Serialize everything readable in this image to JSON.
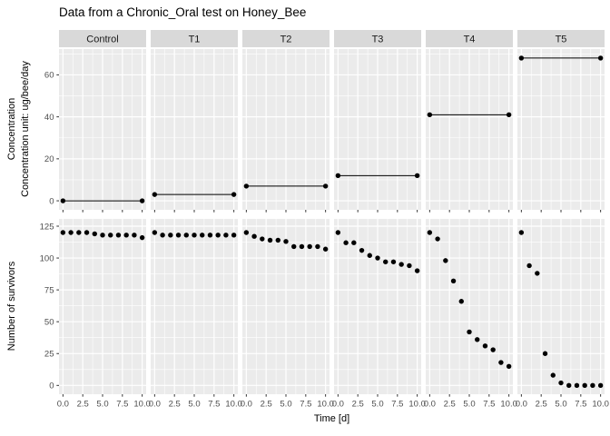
{
  "title": "Data from a Chronic_Oral test on Honey_Bee",
  "chart_data": {
    "type": "scatter",
    "title": "Data from a Chronic_Oral test on Honey_Bee",
    "xlabel": "Time [d]",
    "facets": [
      "Control",
      "T1",
      "T2",
      "T3",
      "T4",
      "T5"
    ],
    "x_days": [
      0,
      1,
      2,
      3,
      4,
      5,
      6,
      7,
      8,
      9,
      10
    ],
    "xlim": [
      -0.5,
      10.5
    ],
    "x_ticks": [
      0,
      2.5,
      5,
      7.5,
      10
    ],
    "x_tick_labels": [
      "0.0",
      "2.5",
      "5.0",
      "7.5",
      "10.0"
    ],
    "grid": "on",
    "legend": "none",
    "rows": [
      {
        "name": "concentration",
        "label_line1": "Concentration",
        "label_line2": "Concentration unit: ug/bee/day",
        "ylim": [
          -4.3,
          72.3
        ],
        "y_ticks": [
          0,
          20,
          40,
          60
        ]
      },
      {
        "name": "survivors",
        "label": "Number of survivors",
        "ylim": [
          -6.9,
          130.7
        ],
        "y_ticks": [
          0,
          25,
          50,
          75,
          100,
          125
        ]
      }
    ],
    "concentration_by_facet": {
      "Control": 0,
      "T1": 3,
      "T2": 7,
      "T3": 12,
      "T4": 41,
      "T5": 68
    },
    "survivors_by_facet": {
      "Control": [
        120,
        120,
        120,
        120,
        119,
        118,
        118,
        118,
        118,
        118,
        116
      ],
      "T1": [
        120,
        118,
        118,
        118,
        118,
        118,
        118,
        118,
        118,
        118,
        118
      ],
      "T2": [
        120,
        117,
        115,
        114,
        114,
        113,
        109,
        109,
        109,
        109,
        107
      ],
      "T3": [
        120,
        112,
        112,
        106,
        102,
        100,
        97,
        97,
        95,
        94,
        90
      ],
      "T4": [
        120,
        115,
        98,
        82,
        66,
        42,
        36,
        31,
        28,
        18,
        15
      ],
      "T5": [
        120,
        94,
        88,
        25,
        8,
        2,
        0,
        0,
        0,
        0,
        0
      ]
    },
    "colors": {
      "panel_bg": "#EBEBEB",
      "strip_bg": "#D9D9D9",
      "grid": "#FFFFFF",
      "point": "#000000",
      "line": "#000000",
      "axis_text": "#4D4D4D",
      "tick_mark": "#333333",
      "strip_text": "#1A1A1A",
      "title_text": "#000000"
    }
  }
}
